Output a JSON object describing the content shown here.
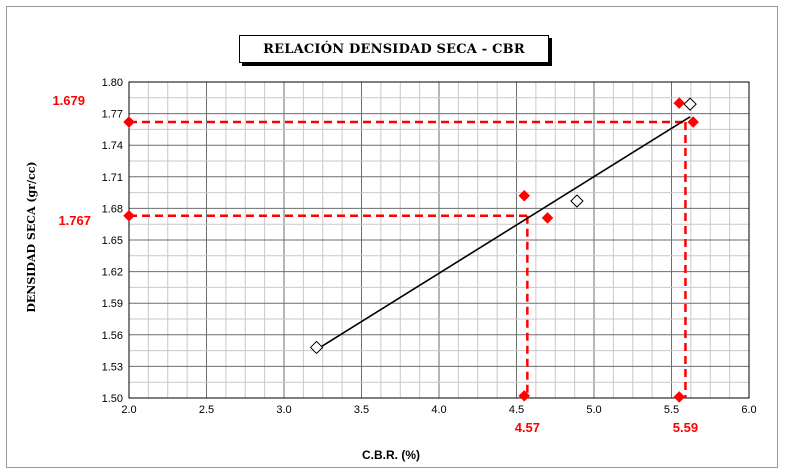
{
  "chart_data": {
    "type": "scatter",
    "title": "RELACIÓN DENSIDAD SECA - CBR",
    "xlabel": "C.B.R. (%)",
    "ylabel": "DENSIDAD SECA (gr/cc)",
    "xlim": [
      2.0,
      6.0
    ],
    "ylim": [
      1.5,
      1.8
    ],
    "x_ticks": [
      "2.0",
      "2.5",
      "3.0",
      "3.5",
      "4.0",
      "4.5",
      "5.0",
      "5.5",
      "6.0"
    ],
    "y_ticks": [
      "1.50",
      "1.53",
      "1.56",
      "1.59",
      "1.62",
      "1.65",
      "1.68",
      "1.71",
      "1.74",
      "1.77",
      "1.80"
    ],
    "grid": true,
    "colors": {
      "marker": "#ff0000",
      "line": "#000000",
      "data_marker": "#ffffff"
    },
    "series": [
      {
        "marker": "diamond-open",
        "points": [
          [
            3.21,
            1.548
          ],
          [
            4.89,
            1.687
          ],
          [
            5.62,
            1.779
          ]
        ]
      },
      {
        "marker": "line",
        "points": [
          [
            3.2,
            1.545
          ],
          [
            5.62,
            1.767
          ]
        ]
      }
    ],
    "reference_lines": [
      {
        "x": 4.57,
        "y": 1.679,
        "x_label": "4.57",
        "y_label": "1.679"
      },
      {
        "x": 5.59,
        "y": 1.767,
        "x_label": "5.59",
        "y_label": "1.767"
      }
    ],
    "reference_markers": [
      [
        2.0,
        1.762
      ],
      [
        5.64,
        1.762
      ],
      [
        5.55,
        1.78
      ],
      [
        2.0,
        1.673
      ],
      [
        4.7,
        1.671
      ],
      [
        4.55,
        1.692
      ],
      [
        4.55,
        1.502
      ],
      [
        5.55,
        1.501
      ]
    ]
  }
}
